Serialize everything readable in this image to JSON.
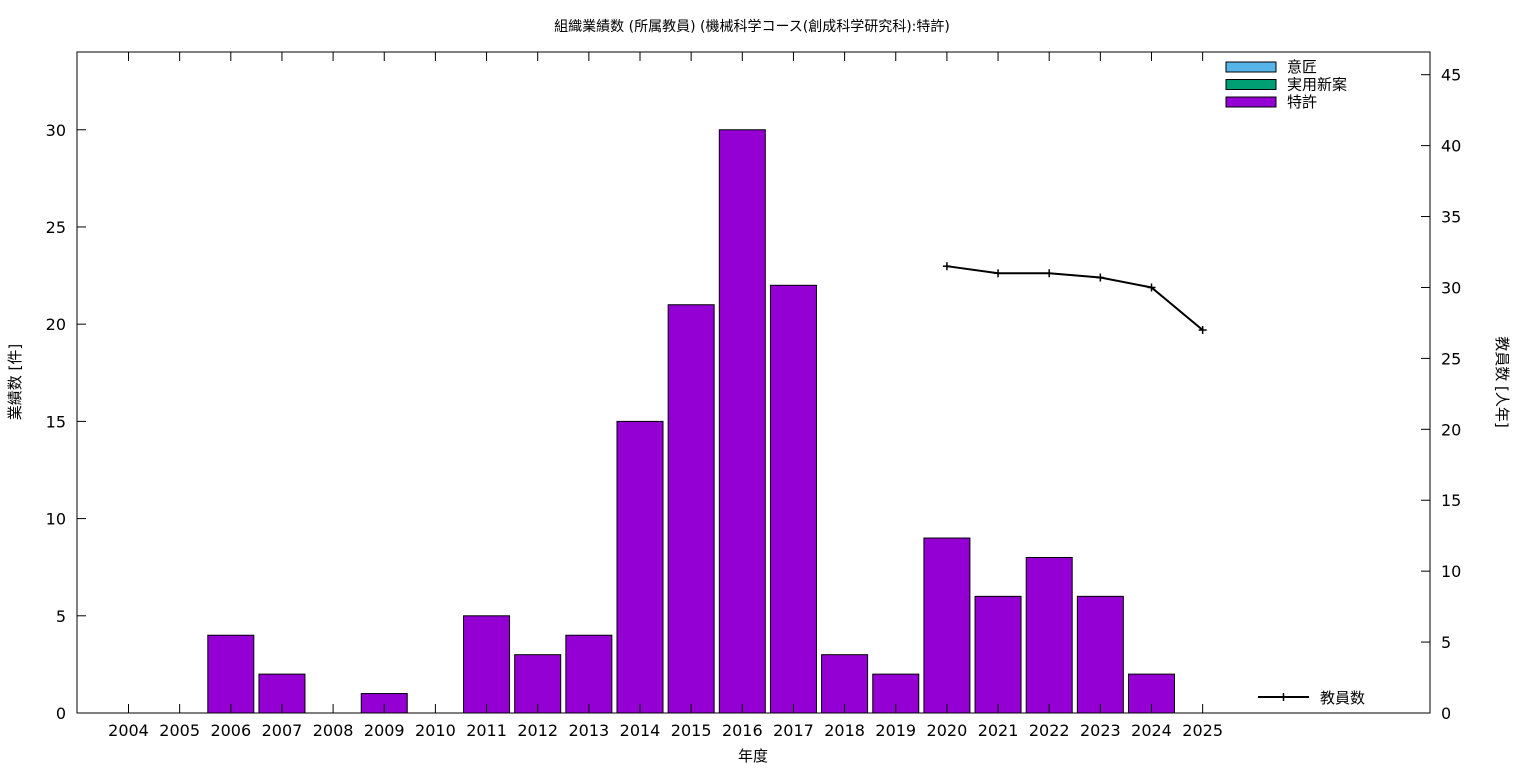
{
  "chart_data": {
    "type": "bar",
    "title": "組織業績数 (所属教員) (機械科学コース(創成科学研究科):特許)",
    "xlabel": "年度",
    "ylabel": "業績数 [件]",
    "y2label": "教員数 [人年]",
    "categories": [
      "2004",
      "2005",
      "2006",
      "2007",
      "2008",
      "2009",
      "2010",
      "2011",
      "2012",
      "2013",
      "2014",
      "2015",
      "2016",
      "2017",
      "2018",
      "2019",
      "2020",
      "2021",
      "2022",
      "2023",
      "2024",
      "2025"
    ],
    "ylim": [
      0,
      34
    ],
    "y2lim": [
      0,
      46.6
    ],
    "yticks": [
      0,
      5,
      10,
      15,
      20,
      25,
      30
    ],
    "y2ticks": [
      0,
      5,
      10,
      15,
      20,
      25,
      30,
      35,
      40,
      45
    ],
    "grid": false,
    "legend_position": "top-right",
    "series": [
      {
        "name": "意匠",
        "color": "#56b4e9",
        "values": [
          0,
          0,
          0,
          0,
          0,
          0,
          0,
          0,
          0,
          0,
          0,
          0,
          0,
          0,
          0,
          0,
          0,
          0,
          0,
          0,
          0,
          0
        ]
      },
      {
        "name": "実用新案",
        "color": "#009e73",
        "values": [
          0,
          0,
          0,
          0,
          0,
          0,
          0,
          0,
          0,
          0,
          0,
          0,
          0,
          0,
          0,
          0,
          0,
          0,
          0,
          0,
          0,
          0
        ]
      },
      {
        "name": "特許",
        "color": "#9400d3",
        "values": [
          0,
          0,
          4,
          2,
          0,
          1,
          0,
          5,
          3,
          4,
          15,
          21,
          30,
          22,
          3,
          2,
          9,
          6,
          8,
          6,
          2,
          0
        ]
      }
    ],
    "line_series": {
      "name": "教員数",
      "color": "#000000",
      "axis": "y2",
      "x": [
        "2020",
        "2021",
        "2022",
        "2023",
        "2024",
        "2025"
      ],
      "values": [
        31.5,
        31.0,
        31.0,
        30.7,
        30.0,
        27.0
      ]
    }
  }
}
